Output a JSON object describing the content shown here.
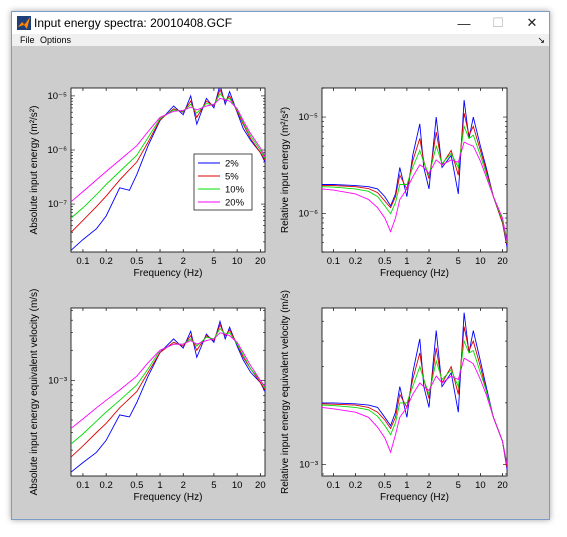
{
  "window": {
    "title": "Input energy spectra: 20010408.GCF",
    "minimize_symbol": "—",
    "maximize_symbol": "☐",
    "close_symbol": "✕"
  },
  "menu": {
    "items": [
      "File",
      "Options"
    ],
    "dock_icon": "↘"
  },
  "colors": {
    "2%": "#0000ff",
    "5%": "#dd0000",
    "10%": "#00dd00",
    "20%": "#ff00ff"
  },
  "legend": [
    "2%",
    "5%",
    "10%",
    "20%"
  ],
  "chart_data": [
    {
      "type": "line",
      "xlabel": "Frequency (Hz)",
      "ylabel": "Absolute input energy (m²/s²)",
      "xscale": "log",
      "yscale": "log",
      "xlim": [
        0.07,
        23
      ],
      "ylim": [
        1.3e-08,
        1.4e-05
      ],
      "xticks": [
        "0.1",
        "0.2",
        "0.5",
        "1",
        "2",
        "5",
        "10",
        "20"
      ],
      "yticks": [
        "10⁻⁷",
        "10⁻⁶",
        "10⁻⁵"
      ],
      "legend_position": "center",
      "series": [
        {
          "name": "2%",
          "x": [
            0.07,
            0.1,
            0.15,
            0.2,
            0.3,
            0.4,
            0.5,
            0.7,
            1,
            1.5,
            2,
            2.5,
            3,
            4,
            5,
            6,
            7,
            8,
            10,
            12,
            15,
            20,
            23
          ],
          "y": [
            1.4e-08,
            2.2e-08,
            3.5e-08,
            6e-08,
            2e-07,
            1.8e-07,
            3.5e-07,
            1.2e-06,
            3.5e-06,
            6.5e-06,
            4.5e-06,
            1e-05,
            3e-06,
            9e-06,
            6e-06,
            1.6e-05,
            7e-06,
            1.2e-05,
            5e-06,
            2.5e-06,
            1.5e-06,
            9e-07,
            6e-07
          ]
        },
        {
          "name": "5%",
          "x": [
            0.07,
            0.1,
            0.15,
            0.2,
            0.3,
            0.5,
            0.7,
            1,
            1.5,
            2,
            2.5,
            3,
            4,
            5,
            6,
            7,
            8,
            10,
            12,
            15,
            20,
            23
          ],
          "y": [
            3e-08,
            5e-08,
            9e-08,
            1.4e-07,
            2.8e-07,
            6e-07,
            1.4e-06,
            3.6e-06,
            5.8e-06,
            5e-06,
            8e-06,
            4e-06,
            8e-06,
            6.5e-06,
            1.3e-05,
            8e-06,
            1e-05,
            5.2e-06,
            3e-06,
            1.6e-06,
            9e-07,
            6.5e-07
          ]
        },
        {
          "name": "10%",
          "x": [
            0.07,
            0.1,
            0.15,
            0.2,
            0.3,
            0.5,
            0.7,
            1,
            1.5,
            2,
            2.5,
            3,
            4,
            5,
            6,
            7,
            8,
            10,
            12,
            15,
            20,
            23
          ],
          "y": [
            5.5e-08,
            8.5e-08,
            1.5e-07,
            2.3e-07,
            4e-07,
            8e-07,
            1.7e-06,
            3.8e-06,
            5.5e-06,
            5.2e-06,
            7e-06,
            4.8e-06,
            7.2e-06,
            6.8e-06,
            1.1e-05,
            8.5e-06,
            9e-06,
            5.5e-06,
            3.2e-06,
            1.8e-06,
            1e-06,
            7e-07
          ]
        },
        {
          "name": "20%",
          "x": [
            0.07,
            0.1,
            0.15,
            0.2,
            0.3,
            0.5,
            0.7,
            1,
            1.5,
            2,
            2.5,
            3,
            4,
            5,
            6,
            7,
            8,
            10,
            12,
            15,
            20,
            23
          ],
          "y": [
            1.1e-07,
            1.7e-07,
            2.8e-07,
            4e-07,
            6.5e-07,
            1.2e-06,
            2.2e-06,
            4e-06,
            5.2e-06,
            5.4e-06,
            6.2e-06,
            5.5e-06,
            6.5e-06,
            7e-06,
            9e-06,
            8.5e-06,
            8e-06,
            5.8e-06,
            3.5e-06,
            2e-06,
            1.1e-06,
            7.5e-07
          ]
        }
      ]
    },
    {
      "type": "line",
      "xlabel": "Frequency (Hz)",
      "ylabel": "Relative input energy (m²/s²)",
      "xscale": "log",
      "yscale": "log",
      "xlim": [
        0.07,
        23
      ],
      "ylim": [
        4e-07,
        2e-05
      ],
      "xticks": [
        "0.1",
        "0.2",
        "0.5",
        "1",
        "2",
        "5",
        "10",
        "20"
      ],
      "yticks": [
        "10⁻⁶",
        "10⁻⁵"
      ],
      "series": [
        {
          "name": "2%",
          "x": [
            0.07,
            0.1,
            0.2,
            0.3,
            0.4,
            0.5,
            0.6,
            0.7,
            0.8,
            1,
            1.2,
            1.5,
            1.7,
            2,
            2.5,
            3,
            4,
            5,
            6,
            7,
            8,
            10,
            12,
            15,
            20,
            23
          ],
          "y": [
            2e-06,
            2e-06,
            1.95e-06,
            1.9e-06,
            1.8e-06,
            1.5e-06,
            1.2e-06,
            1.6e-06,
            3e-06,
            1.5e-06,
            4e-06,
            8.5e-06,
            3e-06,
            1.8e-06,
            1e-05,
            3e-06,
            4e-06,
            1.6e-06,
            1.5e-05,
            6e-06,
            1e-05,
            5e-06,
            3e-06,
            1.5e-06,
            8e-07,
            4.5e-07
          ]
        },
        {
          "name": "5%",
          "x": [
            0.07,
            0.1,
            0.2,
            0.3,
            0.4,
            0.5,
            0.6,
            0.7,
            0.8,
            1,
            1.2,
            1.5,
            1.7,
            2,
            2.5,
            3,
            4,
            5,
            6,
            7,
            8,
            10,
            12,
            15,
            20,
            23
          ],
          "y": [
            1.95e-06,
            1.95e-06,
            1.9e-06,
            1.82e-06,
            1.65e-06,
            1.35e-06,
            1.15e-06,
            1.5e-06,
            2.5e-06,
            1.8e-06,
            3.5e-06,
            6e-06,
            3.5e-06,
            2.3e-06,
            7e-06,
            3.2e-06,
            4.5e-06,
            2.5e-06,
            1.1e-05,
            6.5e-06,
            8e-06,
            4.5e-06,
            2.8e-06,
            1.5e-06,
            8e-07,
            4.8e-07
          ]
        },
        {
          "name": "10%",
          "x": [
            0.07,
            0.1,
            0.2,
            0.3,
            0.4,
            0.5,
            0.6,
            0.7,
            0.8,
            1,
            1.2,
            1.5,
            1.7,
            2,
            2.5,
            3,
            4,
            5,
            6,
            7,
            8,
            10,
            12,
            15,
            20,
            23
          ],
          "y": [
            1.9e-06,
            1.88e-06,
            1.8e-06,
            1.7e-06,
            1.5e-06,
            1.2e-06,
            1e-06,
            1.3e-06,
            2e-06,
            2e-06,
            3e-06,
            4.5e-06,
            3.4e-06,
            2.5e-06,
            5e-06,
            3.3e-06,
            4.2e-06,
            3e-06,
            8e-06,
            6e-06,
            6.5e-06,
            4e-06,
            2.6e-06,
            1.5e-06,
            8.5e-07,
            5e-07
          ]
        },
        {
          "name": "20%",
          "x": [
            0.07,
            0.1,
            0.2,
            0.3,
            0.4,
            0.5,
            0.6,
            0.7,
            0.8,
            1,
            1.2,
            1.5,
            1.7,
            2,
            2.5,
            3,
            4,
            5,
            6,
            7,
            8,
            10,
            12,
            15,
            20,
            23
          ],
          "y": [
            1.8e-06,
            1.75e-06,
            1.6e-06,
            1.4e-06,
            1.15e-06,
            9e-07,
            6.5e-07,
            9e-07,
            1.4e-06,
            1.8e-06,
            2.4e-06,
            3.2e-06,
            3e-06,
            2.6e-06,
            3.6e-06,
            3.2e-06,
            3.6e-06,
            3.4e-06,
            5.5e-06,
            5.2e-06,
            5e-06,
            3.5e-06,
            2.4e-06,
            1.5e-06,
            9e-07,
            5.2e-07
          ]
        }
      ]
    },
    {
      "type": "line",
      "xlabel": "Frequency (Hz)",
      "ylabel": "Absolute input energy equivalent velocity (m/s)",
      "xscale": "log",
      "yscale": "log",
      "xlim": [
        0.07,
        23
      ],
      "ylim": [
        0.00011,
        0.0053
      ],
      "xticks": [
        "0.1",
        "0.2",
        "0.5",
        "1",
        "2",
        "5",
        "10",
        "20"
      ],
      "yticks": [
        "10⁻³"
      ],
      "series": [
        {
          "name": "2%",
          "x": [
            0.07,
            0.1,
            0.15,
            0.2,
            0.3,
            0.4,
            0.5,
            0.7,
            1,
            1.5,
            2,
            2.5,
            3,
            4,
            5,
            6,
            7,
            8,
            10,
            12,
            15,
            20,
            23
          ],
          "y": [
            0.00012,
            0.00015,
            0.00019,
            0.00025,
            0.00045,
            0.00043,
            0.0006,
            0.0011,
            0.0019,
            0.0026,
            0.0021,
            0.0031,
            0.0017,
            0.0029,
            0.0024,
            0.0039,
            0.0026,
            0.0034,
            0.0022,
            0.0016,
            0.0012,
            0.00095,
            0.00077
          ]
        },
        {
          "name": "5%",
          "x": [
            0.07,
            0.1,
            0.15,
            0.2,
            0.3,
            0.5,
            0.7,
            1,
            1.5,
            2,
            2.5,
            3,
            4,
            5,
            6,
            7,
            8,
            10,
            12,
            15,
            20,
            23
          ],
          "y": [
            0.00017,
            0.00022,
            0.0003,
            0.00037,
            0.00053,
            0.00077,
            0.0012,
            0.0019,
            0.0024,
            0.0022,
            0.0028,
            0.002,
            0.0028,
            0.0025,
            0.0036,
            0.0028,
            0.0032,
            0.0023,
            0.0017,
            0.0013,
            0.00095,
            0.0008
          ]
        },
        {
          "name": "10%",
          "x": [
            0.07,
            0.1,
            0.15,
            0.2,
            0.3,
            0.5,
            0.7,
            1,
            1.5,
            2,
            2.5,
            3,
            4,
            5,
            6,
            7,
            8,
            10,
            12,
            15,
            20,
            23
          ],
          "y": [
            0.00023,
            0.00029,
            0.00039,
            0.00048,
            0.00063,
            0.0009,
            0.0013,
            0.002,
            0.0023,
            0.0023,
            0.0026,
            0.0022,
            0.0027,
            0.0026,
            0.0033,
            0.0029,
            0.003,
            0.0023,
            0.0018,
            0.0013,
            0.001,
            0.00084
          ]
        },
        {
          "name": "20%",
          "x": [
            0.07,
            0.1,
            0.15,
            0.2,
            0.3,
            0.5,
            0.7,
            1,
            1.5,
            2,
            2.5,
            3,
            4,
            5,
            6,
            7,
            8,
            10,
            12,
            15,
            20,
            23
          ],
          "y": [
            0.00033,
            0.00041,
            0.00053,
            0.00063,
            0.0008,
            0.0011,
            0.0015,
            0.002,
            0.0023,
            0.0023,
            0.0025,
            0.0023,
            0.0025,
            0.0026,
            0.003,
            0.0029,
            0.0028,
            0.0024,
            0.0019,
            0.0014,
            0.001,
            0.00087
          ]
        }
      ]
    },
    {
      "type": "line",
      "xlabel": "Frequency (Hz)",
      "ylabel": "Relative input energy equivalent velocity (m/s)",
      "xscale": "log",
      "yscale": "log",
      "xlim": [
        0.07,
        23
      ],
      "ylim": [
        0.00088,
        0.0058
      ],
      "xticks": [
        "0.1",
        "0.2",
        "0.5",
        "1",
        "2",
        "5",
        "10",
        "20"
      ],
      "yticks": [
        "10⁻³"
      ],
      "series": [
        {
          "name": "2%",
          "x": [
            0.07,
            0.1,
            0.2,
            0.3,
            0.4,
            0.5,
            0.6,
            0.7,
            0.8,
            1,
            1.2,
            1.5,
            1.7,
            2,
            2.5,
            3,
            4,
            5,
            6,
            7,
            8,
            10,
            12,
            15,
            20,
            23
          ],
          "y": [
            0.002,
            0.002,
            0.00198,
            0.00195,
            0.0019,
            0.0017,
            0.00155,
            0.0018,
            0.0024,
            0.0017,
            0.0028,
            0.0041,
            0.0024,
            0.0019,
            0.0045,
            0.0024,
            0.0028,
            0.0018,
            0.0055,
            0.0035,
            0.0045,
            0.0032,
            0.0024,
            0.0017,
            0.0013,
            0.00095
          ]
        },
        {
          "name": "5%",
          "x": [
            0.07,
            0.1,
            0.2,
            0.3,
            0.4,
            0.5,
            0.6,
            0.7,
            0.8,
            1,
            1.2,
            1.5,
            1.7,
            2,
            2.5,
            3,
            4,
            5,
            6,
            7,
            8,
            10,
            12,
            15,
            20,
            23
          ],
          "y": [
            0.00198,
            0.00197,
            0.00195,
            0.0019,
            0.0018,
            0.00165,
            0.0015,
            0.0017,
            0.0022,
            0.0019,
            0.0026,
            0.0035,
            0.0026,
            0.0021,
            0.0037,
            0.0025,
            0.003,
            0.0022,
            0.0047,
            0.0036,
            0.004,
            0.003,
            0.0023,
            0.0017,
            0.0013,
            0.00097
          ]
        },
        {
          "name": "10%",
          "x": [
            0.07,
            0.1,
            0.2,
            0.3,
            0.4,
            0.5,
            0.6,
            0.7,
            0.8,
            1,
            1.2,
            1.5,
            1.7,
            2,
            2.5,
            3,
            4,
            5,
            6,
            7,
            8,
            10,
            12,
            15,
            20,
            23
          ],
          "y": [
            0.00195,
            0.00194,
            0.0019,
            0.00185,
            0.00172,
            0.00155,
            0.0014,
            0.0016,
            0.002,
            0.002,
            0.0024,
            0.003,
            0.0026,
            0.0022,
            0.0032,
            0.0026,
            0.0029,
            0.0024,
            0.004,
            0.0035,
            0.0036,
            0.0028,
            0.0023,
            0.0017,
            0.0013,
            0.001
          ]
        },
        {
          "name": "20%",
          "x": [
            0.07,
            0.1,
            0.2,
            0.3,
            0.4,
            0.5,
            0.6,
            0.7,
            0.8,
            1,
            1.2,
            1.5,
            1.7,
            2,
            2.5,
            3,
            4,
            5,
            6,
            7,
            8,
            10,
            12,
            15,
            20,
            23
          ],
          "y": [
            0.0019,
            0.00187,
            0.0018,
            0.0017,
            0.00152,
            0.00135,
            0.00115,
            0.0014,
            0.0017,
            0.0019,
            0.0022,
            0.0025,
            0.0024,
            0.0023,
            0.0027,
            0.0025,
            0.0027,
            0.0026,
            0.0033,
            0.0032,
            0.0031,
            0.0026,
            0.0022,
            0.0017,
            0.0013,
            0.001
          ]
        }
      ]
    }
  ]
}
